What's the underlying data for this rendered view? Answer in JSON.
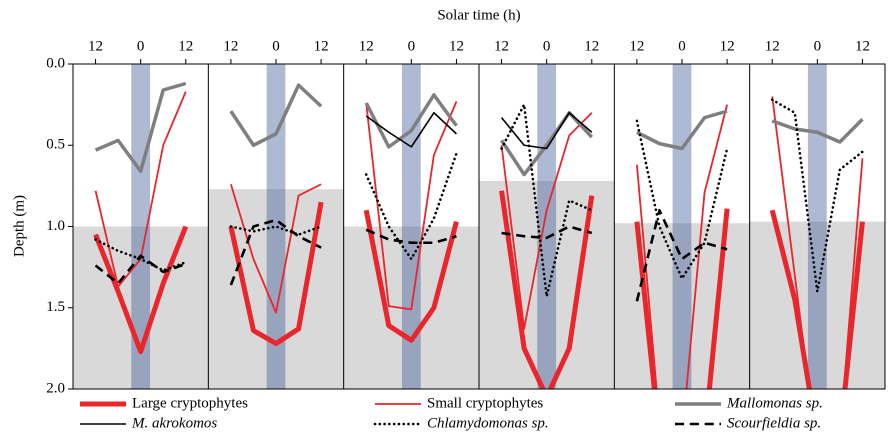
{
  "chart_data": {
    "type": "line",
    "x_label": "Solar time (h)",
    "y_label": "Depth (m)",
    "x": [
      -12,
      -6,
      0,
      6,
      12
    ],
    "xlim": [
      -18,
      18
    ],
    "xticks": [
      {
        "value": -12,
        "label": "12"
      },
      0,
      12
    ],
    "ylim": [
      0,
      2
    ],
    "yticks": [
      {
        "value": 0,
        "label": "0.0"
      },
      {
        "value": 0.5,
        "label": "0.5"
      },
      {
        "value": 1,
        "label": "1.0"
      },
      {
        "value": 1.5,
        "label": "1.5"
      },
      {
        "value": 2,
        "label": "2.0"
      }
    ],
    "y_inverted": true,
    "series": [
      {
        "name": "Large cryptophytes",
        "color": "#e8262c",
        "width": 5,
        "style": "solid"
      },
      {
        "name": "Small cryptophytes",
        "color": "#e8262c",
        "width": 1.8,
        "style": "solid"
      },
      {
        "name": "Mallomonas sp.",
        "color": "#7f7f7f",
        "width": 3.5,
        "style": "solid"
      },
      {
        "name": "M. akrokomos",
        "color": "#000000",
        "width": 1.6,
        "style": "solid"
      },
      {
        "name": "Chlamydomonas sp.",
        "color": "#000000",
        "width": 2.6,
        "style": "dotted"
      },
      {
        "name": "Scourfieldia sp.",
        "color": "#000000",
        "width": 2.6,
        "style": "dashed"
      }
    ],
    "panels": [
      {
        "night_band": [
          -2.5,
          2.5
        ],
        "mixed_layer_depth": 1.0,
        "values": [
          [
            1.05,
            1.4,
            1.77,
            1.35,
            1.0
          ],
          [
            0.78,
            1.37,
            1.2,
            0.5,
            0.17
          ],
          [
            0.53,
            0.47,
            0.66,
            0.16,
            0.12
          ],
          [
            null,
            null,
            null,
            null,
            null
          ],
          [
            1.08,
            1.15,
            1.2,
            1.27,
            1.22
          ],
          [
            1.24,
            1.35,
            1.18,
            1.28,
            1.23
          ]
        ]
      },
      {
        "night_band": [
          -2.5,
          2.5
        ],
        "mixed_layer_depth": 0.77,
        "values": [
          [
            1.0,
            1.64,
            1.72,
            1.63,
            0.85
          ],
          [
            0.74,
            1.2,
            1.53,
            0.81,
            0.74
          ],
          [
            0.29,
            0.5,
            0.43,
            0.13,
            0.26
          ],
          [
            null,
            null,
            null,
            null,
            null
          ],
          [
            1.0,
            1.03,
            1.0,
            1.05,
            1.0
          ],
          [
            1.36,
            1.0,
            0.96,
            1.06,
            1.13
          ]
        ]
      },
      {
        "night_band": [
          -2.5,
          2.5
        ],
        "mixed_layer_depth": 1.0,
        "values": [
          [
            0.9,
            1.61,
            1.7,
            1.5,
            0.97
          ],
          [
            0.24,
            1.49,
            1.51,
            0.56,
            0.23
          ],
          [
            0.24,
            0.51,
            0.41,
            0.19,
            0.38
          ],
          [
            0.32,
            0.42,
            0.51,
            0.3,
            0.43
          ],
          [
            0.68,
            1.0,
            1.2,
            0.95,
            0.55
          ],
          [
            1.02,
            1.08,
            1.1,
            1.1,
            1.06
          ]
        ]
      },
      {
        "night_band": [
          -2.5,
          2.5
        ],
        "mixed_layer_depth": 0.72,
        "values": [
          [
            0.78,
            1.75,
            2.05,
            1.75,
            0.81
          ],
          [
            0.5,
            1.63,
            0.9,
            0.44,
            0.3
          ],
          [
            0.47,
            0.68,
            0.5,
            0.3,
            0.45
          ],
          [
            0.33,
            0.5,
            0.52,
            0.3,
            0.42
          ],
          [
            0.52,
            0.25,
            1.43,
            0.84,
            0.9
          ],
          [
            1.04,
            1.06,
            1.07,
            1.0,
            1.04
          ]
        ]
      },
      {
        "night_band": [
          -2.5,
          2.5
        ],
        "mixed_layer_depth": 0.98,
        "values": [
          [
            0.97,
            2.3,
            2.4,
            2.3,
            0.89
          ],
          [
            0.62,
            2.2,
            2.3,
            0.79,
            0.25
          ],
          [
            0.42,
            0.49,
            0.52,
            0.33,
            0.29
          ],
          [
            null,
            null,
            null,
            null,
            null
          ],
          [
            0.35,
            1.0,
            1.32,
            1.1,
            0.52
          ],
          [
            1.46,
            0.9,
            1.2,
            1.1,
            1.14
          ]
        ]
      },
      {
        "night_band": [
          -2.5,
          2.5
        ],
        "mixed_layer_depth": 0.97,
        "values": [
          [
            0.9,
            1.45,
            2.3,
            2.3,
            0.97
          ],
          [
            0.2,
            1.3,
            2.4,
            2.3,
            0.58
          ],
          [
            0.35,
            0.4,
            0.42,
            0.48,
            0.34
          ],
          [
            null,
            null,
            null,
            null,
            null
          ],
          [
            0.22,
            0.3,
            1.4,
            0.65,
            0.54
          ],
          [
            null,
            null,
            null,
            null,
            null
          ]
        ]
      }
    ]
  }
}
